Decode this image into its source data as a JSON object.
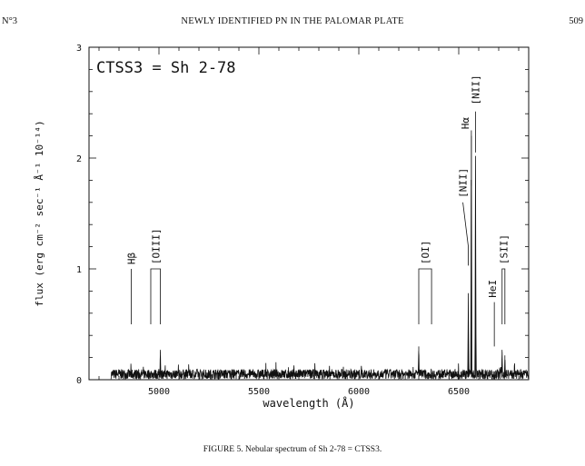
{
  "header": {
    "section": "N°3",
    "title": "NEWLY IDENTIFIED PN IN THE PALOMAR PLATE",
    "page_number": "509"
  },
  "caption": "FIGURE 5. Nebular spectrum of Sh 2-78 = CTSS3.",
  "chart_data": {
    "type": "line",
    "title": "CTSS3 = Sh 2-78",
    "xlabel": "wavelength (Å)",
    "ylabel": "flux (erg cm⁻² sec⁻¹ Å⁻¹ 10⁻¹⁴)",
    "xlim": [
      4650,
      6850
    ],
    "ylim": [
      0,
      3
    ],
    "x_ticks": [
      5000,
      5500,
      6000,
      6500
    ],
    "y_ticks": [
      0,
      1,
      2,
      3
    ],
    "continuum_level": 0.05,
    "series": [
      {
        "points": [
          [
            4760,
            0.03
          ],
          [
            4861,
            0.12
          ],
          [
            4959,
            0.1
          ],
          [
            5007,
            0.27
          ],
          [
            6300,
            0.3
          ],
          [
            6548,
            0.78
          ],
          [
            6563,
            2.25
          ],
          [
            6584,
            2.02
          ],
          [
            6678,
            0.1
          ],
          [
            6717,
            0.27
          ],
          [
            6731,
            0.22
          ],
          [
            6850,
            0.03
          ]
        ]
      }
    ],
    "line_labels": [
      {
        "text": "Hβ",
        "wavelength": 4861,
        "bracket": false
      },
      {
        "text": "[OIII]",
        "wavelengths": [
          4959,
          5007
        ],
        "bracket": true
      },
      {
        "text": "[OI]",
        "wavelengths": [
          6300,
          6364
        ],
        "bracket": true
      },
      {
        "text": "[NII]",
        "wavelength": 6548,
        "bracket": false
      },
      {
        "text": "Hα",
        "wavelength": 6563,
        "bracket": false
      },
      {
        "text": "[NII]",
        "wavelength": 6584,
        "bracket": false
      },
      {
        "text": "HeI",
        "wavelength": 6678,
        "bracket": false
      },
      {
        "text": "[SII]",
        "wavelengths": [
          6717,
          6731
        ],
        "bracket": true
      }
    ]
  }
}
